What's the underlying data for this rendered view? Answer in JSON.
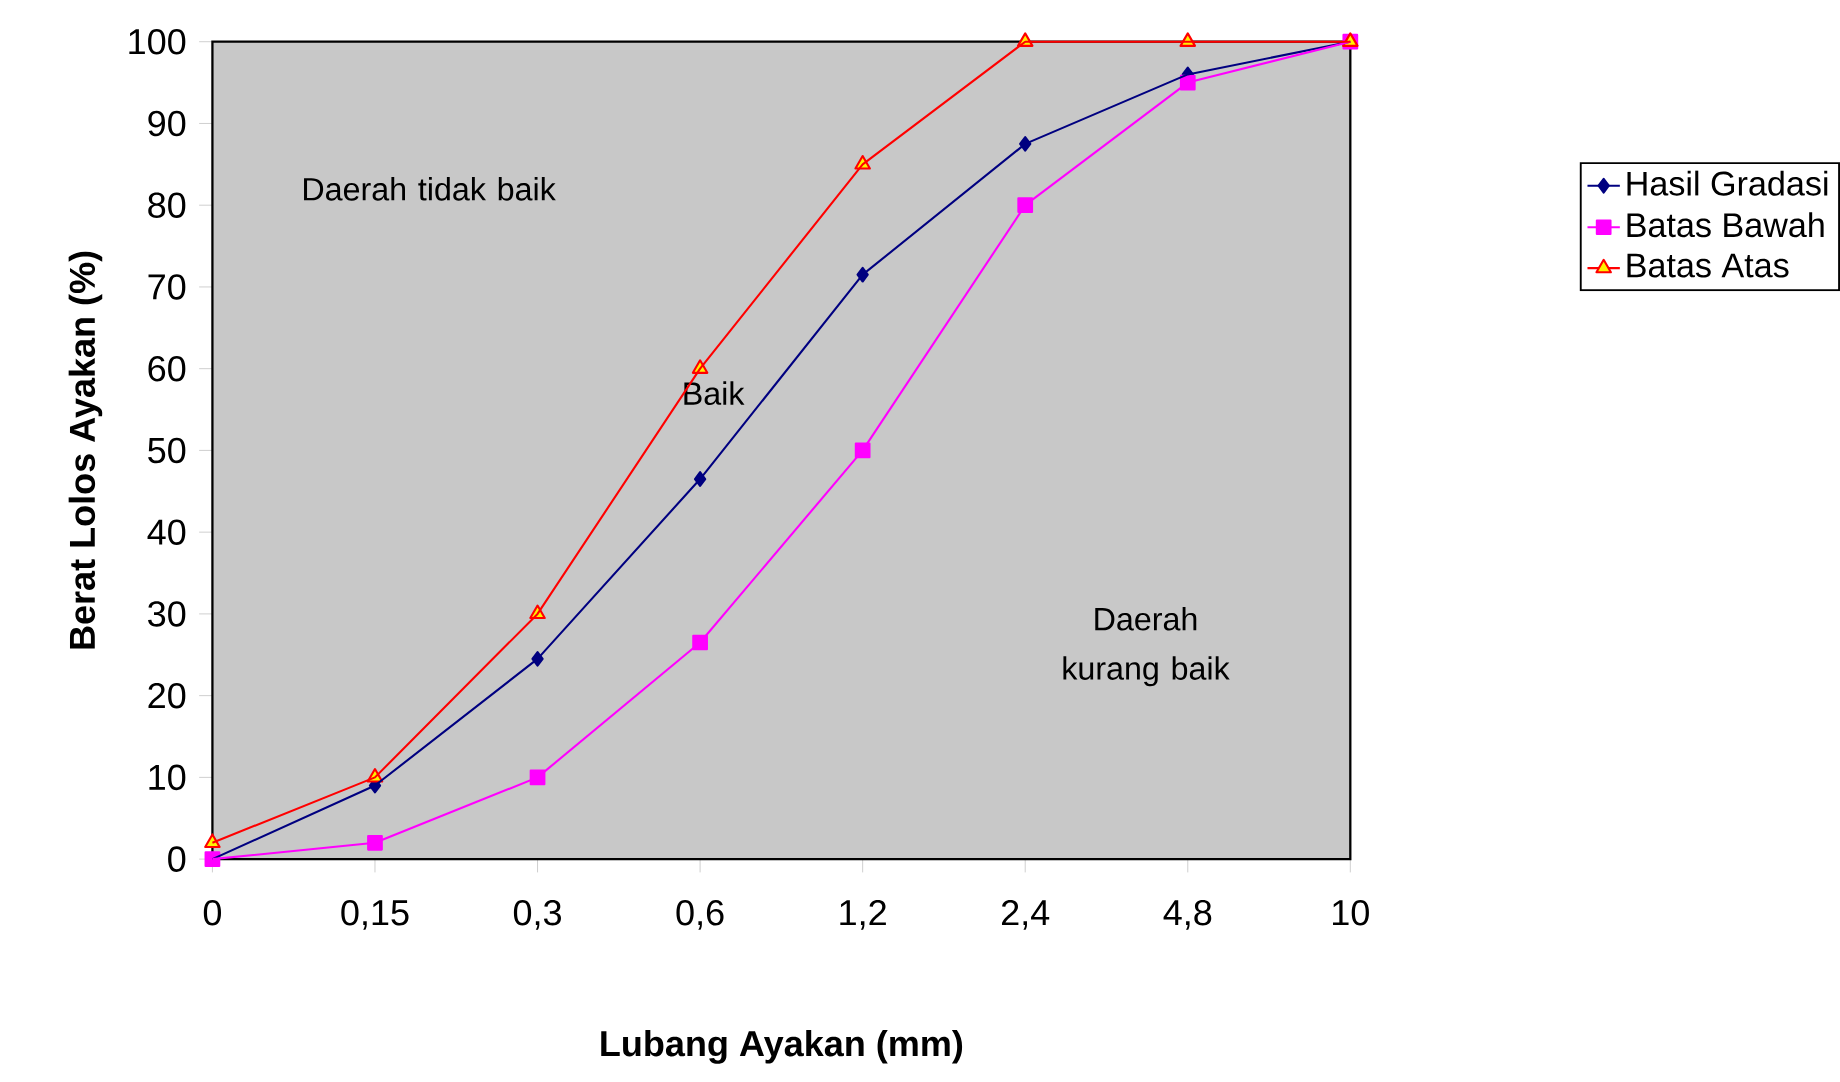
{
  "chart_data": {
    "type": "line",
    "xlabel": "Lubang Ayakan (mm)",
    "ylabel": "Berat Lolos Ayakan (%)",
    "categories": [
      "0",
      "0,15",
      "0,3",
      "0,6",
      "1,2",
      "2,4",
      "4,8",
      "10"
    ],
    "series": [
      {
        "name": "Hasil Gradasi",
        "color": "#000080",
        "marker": "diamond",
        "values": [
          0,
          9,
          24.5,
          46.5,
          71.5,
          87.5,
          96,
          100
        ]
      },
      {
        "name": "Batas Bawah",
        "color": "#ff00ff",
        "marker": "square",
        "values": [
          0,
          2,
          10,
          26.5,
          50,
          80,
          95,
          100
        ]
      },
      {
        "name": "Batas Atas",
        "color": "#ff0000",
        "marker": "triangle",
        "values": [
          2,
          10,
          30,
          60,
          85,
          100,
          100,
          100
        ]
      }
    ],
    "ylim": [
      0,
      100
    ],
    "yticks": [
      0,
      10,
      20,
      30,
      40,
      50,
      60,
      70,
      80,
      90,
      100
    ],
    "annotations": [
      "Daerah tidak baik",
      "Baik",
      "Daerah kurang baik"
    ],
    "legend": "right",
    "grid": false,
    "line_style": "solid"
  }
}
